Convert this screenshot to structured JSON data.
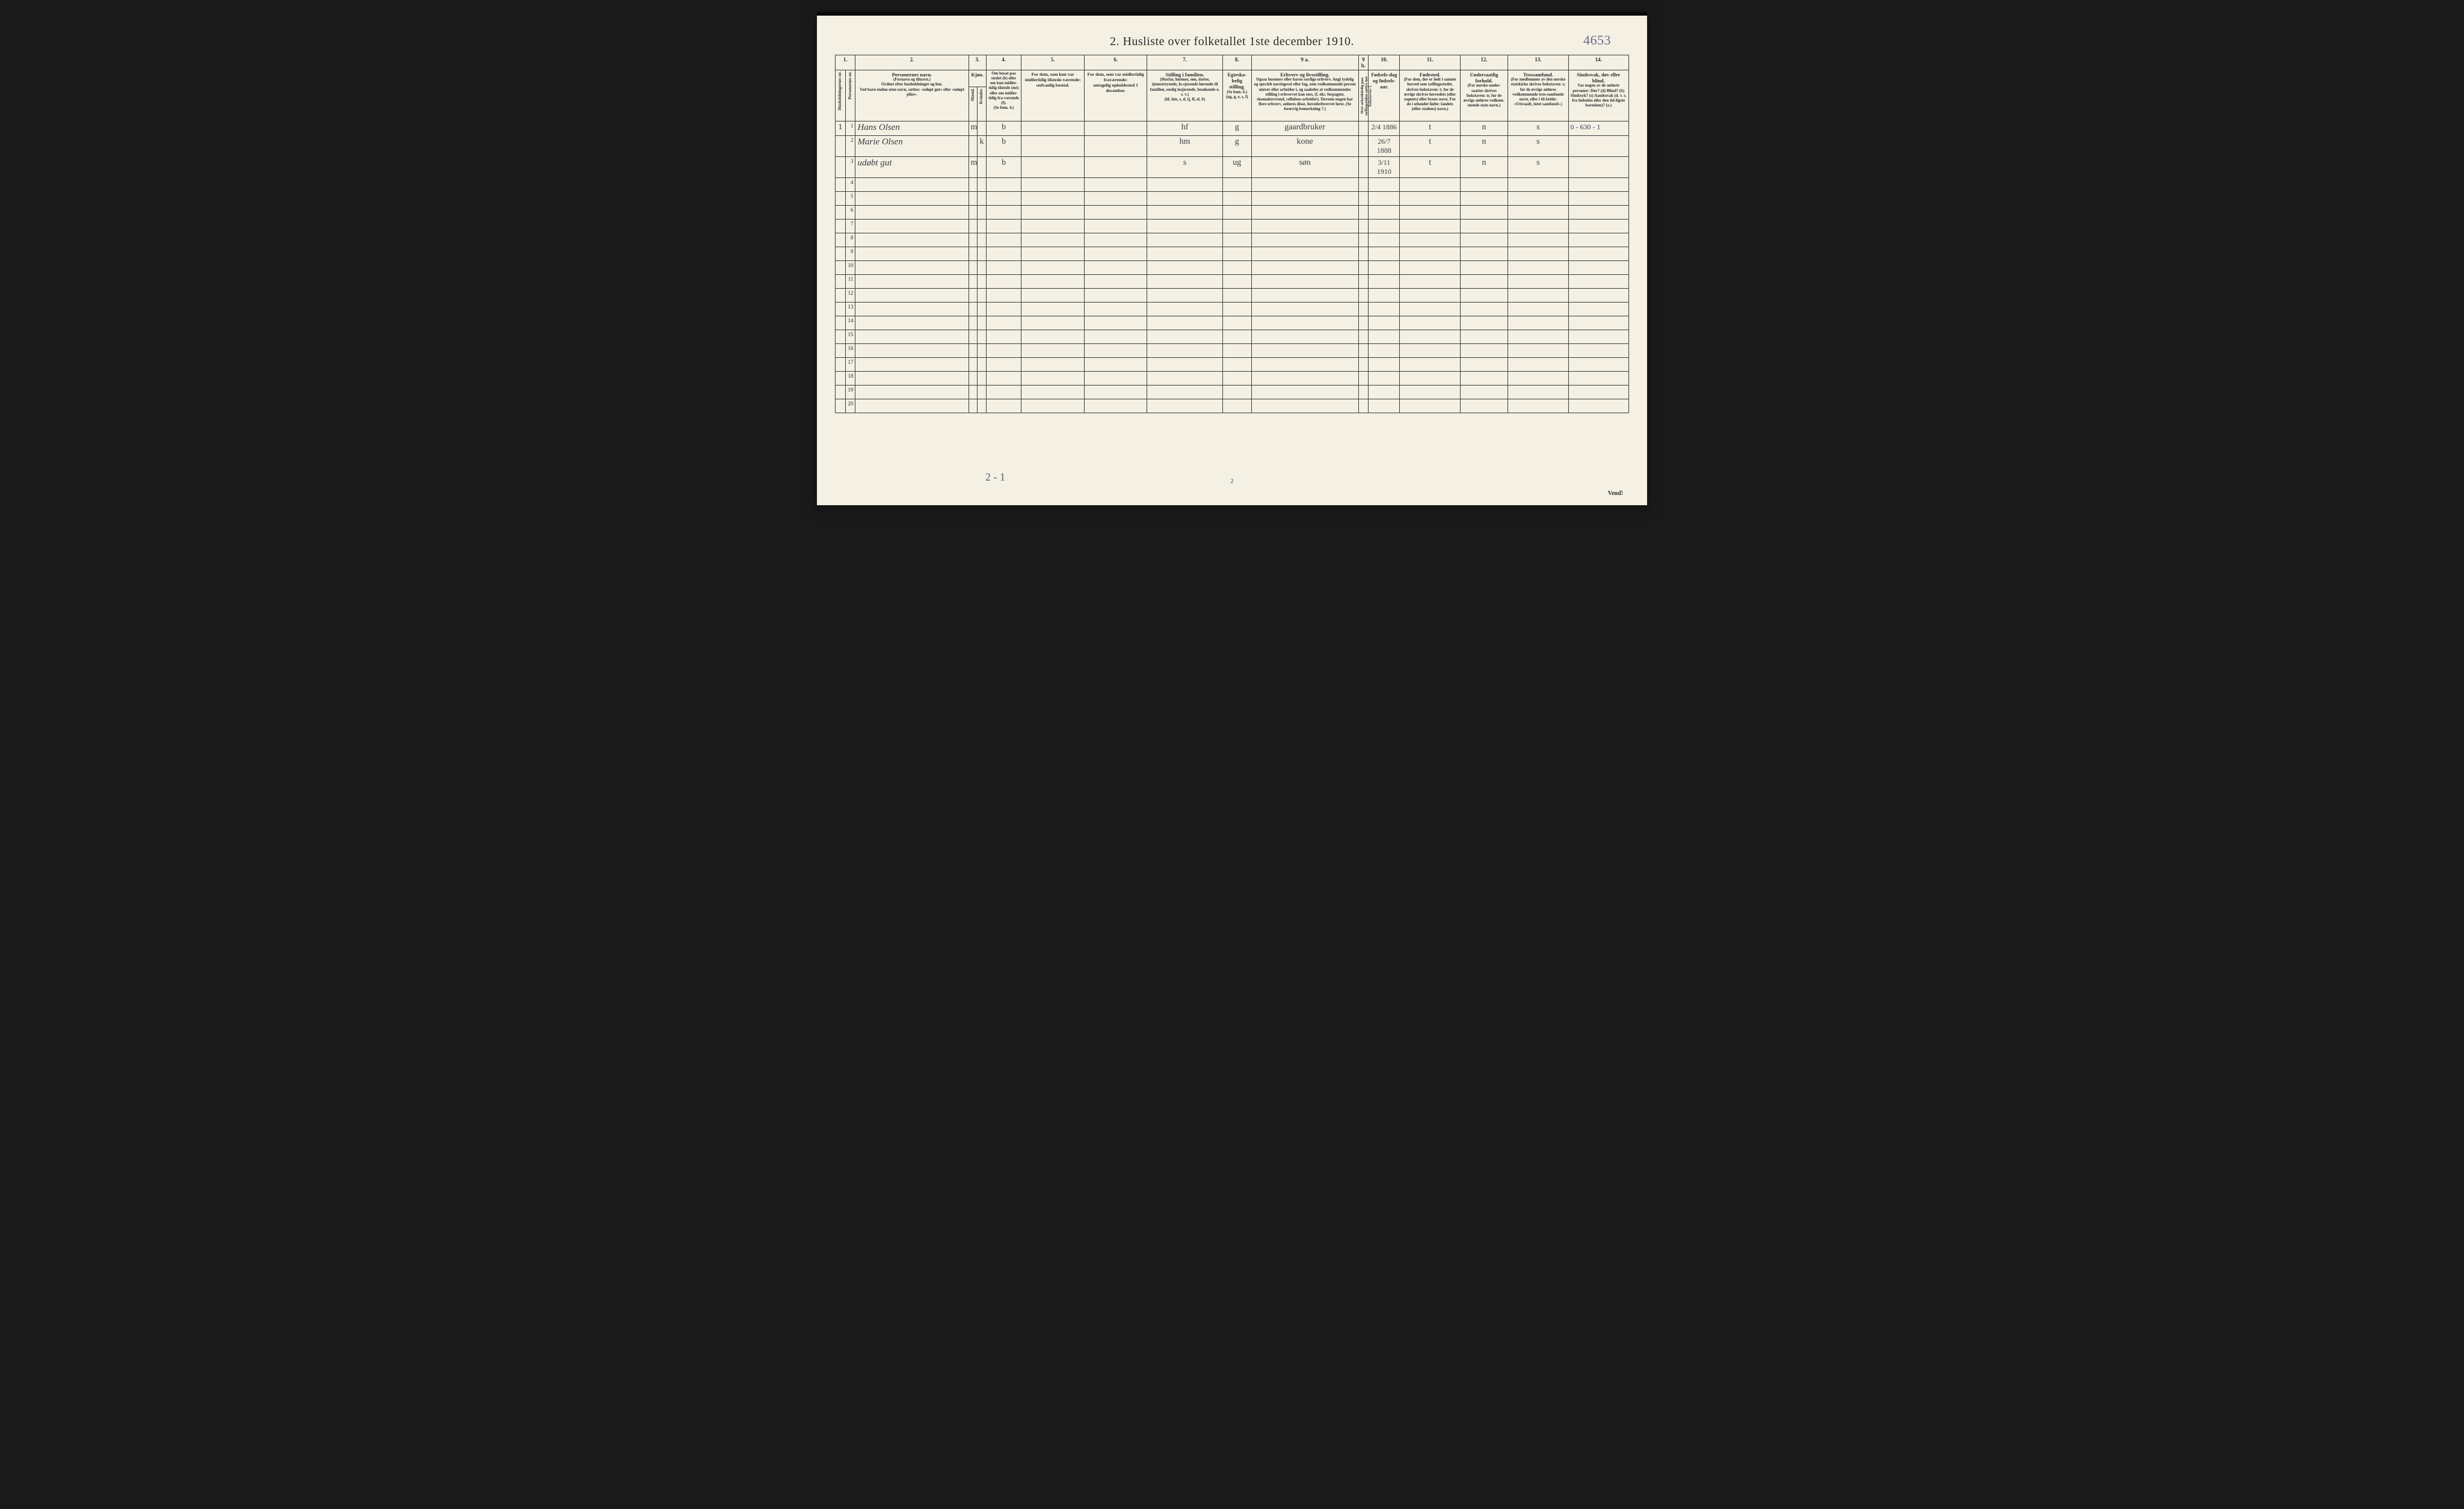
{
  "title": "2.  Husliste over folketallet 1ste december 1910.",
  "annotation_top_right": "4653",
  "col_numbers": [
    "1.",
    "2.",
    "3.",
    "4.",
    "5.",
    "6.",
    "7.",
    "8.",
    "9 a.",
    "9 b.",
    "10.",
    "11.",
    "12.",
    "13.",
    "14."
  ],
  "headers": {
    "c1a": "Husholdningernes nr.",
    "c1b": "Personernes nr.",
    "c2_bold": "Personernes navn.",
    "c2_sub1": "(Fornavn og tilnavn.)",
    "c2_sub2": "Ordnet efter husholdninger og hus.",
    "c2_sub3": "Ved barn endnu uten navn, sættes: «udøpt gut» eller «udøpt pike».",
    "c3_bold": "Kjøn.",
    "c3a": "Mænd.",
    "c3b": "Kvinder.",
    "c3_sub": "m.  k.",
    "c4_line1": "Om bosat paa stedet (b) eller om kun midler-tidig tilstede (mt) eller om midler-tidig fra-værende (f).",
    "c4_line2": "(Se bem. 4.)",
    "c5_line1": "For dem, som kun var midlertidig tilstede-værende:",
    "c5_line2": "sedvanlig bosted.",
    "c6_line1": "For dem, som var midlertidig fraværende:",
    "c6_line2": "antagelig opholdssted 1 december.",
    "c7_bold": "Stilling i familien.",
    "c7_sub1": "(Husfar, husmor, søn, datter, tjenestetyende, lo-sjerende hørende til familien, enslig losjerende, besøkende o. s. v.)",
    "c7_sub2": "(hf, hm, s, d, tj, fl, el, b)",
    "c8_bold": "Egteska-belig stilling.",
    "c8_sub1": "(Se bem. 6.)",
    "c8_sub2": "(ug, g, e, s, f)",
    "c9a_bold": "Erhverv og livsstilling.",
    "c9a_sub": "Ogsaa husmors eller barns særlige erhverv. Angi tydelig og specielt næringsvei eller fag, som vedkommende person utøver eller arbeider i, og saaledes at vedkommendes stilling i erhvervet kan sees, (f. eks. forpagter, skomakersvend, cellulose-arbeider).  Dersom nogen har flere erhverv, anføres disse, hovederhvervet først.  (Se forøvrig bemerkning 7.)",
    "c9b": "Hvis arbeidsledig paa tællingstiden sættes her bokstaven: l.",
    "c10_bold": "Fødsels-dag og fødsels-aar.",
    "c11_bold": "Fødested.",
    "c11_sub": "(For dem, der er født i samme herred som tællingsstedet, skrives bokstaven: t; for de øvrige skrives herredets (eller sognets) eller byens navn. For de i utlandet fødte: landets (eller stadens) navn.)",
    "c12_bold": "Undersaatlig forhold.",
    "c12_sub": "(For norske under-saatter skrives bokstaven: n; for de øvrige anføres vedkom-mende stats navn.)",
    "c13_bold": "Trossamfund.",
    "c13_sub": "(For medlemmer av den norske statskirke skrives bokstaven: s; for de øvrige anføres vedkommende tros-samfunds navn, eller i til-fælde: «Uttraadt, intet samfund».)",
    "c14_bold": "Sindssvak, døv eller blind.",
    "c14_sub": "Var nogen av de anførte personer: Døv? (d) Blind? (b) Sindssyk? (s) Aandssvak (d. v. s. fra fødselen eller den tid-ligste barndom)? (a.)"
  },
  "rows": [
    {
      "hh": "1",
      "pn": "1",
      "name": "Hans Olsen",
      "mk": "m",
      "bosat": "b",
      "c5": "",
      "c6": "",
      "stilling": "hf",
      "egt": "g",
      "erhverv": "gaardbruker",
      "c9b": "",
      "fd": "2/4 1886",
      "fsted": "t",
      "und": "n",
      "tro": "s",
      "margin": "0 - 630 - 1"
    },
    {
      "hh": "",
      "pn": "2",
      "name": "Marie Olsen",
      "mk": "k",
      "bosat": "b",
      "c5": "",
      "c6": "",
      "stilling": "hm",
      "egt": "g",
      "erhverv": "kone",
      "c9b": "",
      "fd": "26/7 1888",
      "fsted": "t",
      "und": "n",
      "tro": "s",
      "margin": ""
    },
    {
      "hh": "",
      "pn": "3",
      "name": "udøbt gut",
      "mk": "m",
      "bosat": "b",
      "c5": "",
      "c6": "",
      "stilling": "s",
      "egt": "ug",
      "erhverv": "søn",
      "c9b": "",
      "fd": "3/11 1910",
      "fsted": "t",
      "und": "n",
      "tro": "s",
      "margin": ""
    }
  ],
  "blank_row_nums": [
    "4",
    "5",
    "6",
    "7",
    "8",
    "9",
    "10",
    "11",
    "12",
    "13",
    "14",
    "15",
    "16",
    "17",
    "18",
    "19",
    "20"
  ],
  "foot_note": "2 - 1",
  "foot_pagenum": "2",
  "foot_vend": "Vend!"
}
